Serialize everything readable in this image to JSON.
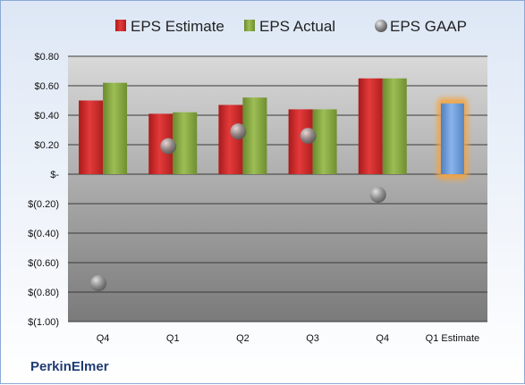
{
  "company": "PerkinElmer",
  "chart_data": {
    "type": "bar",
    "categories": [
      "Q4",
      "Q1",
      "Q2",
      "Q3",
      "Q4",
      "Q1 Estimate"
    ],
    "ylim": [
      -1.0,
      0.8
    ],
    "yticks": [
      0.8,
      0.6,
      0.4,
      0.2,
      0,
      -0.2,
      -0.4,
      -0.6,
      -0.8,
      -1.0
    ],
    "ytick_labels": [
      "$0.80",
      "$0.60",
      "$0.40",
      "$0.20",
      "$-",
      "$(0.20)",
      "$(0.40)",
      "$(0.60)",
      "$(0.80)",
      "$(1.00)"
    ],
    "grid": true,
    "legend_position": "top",
    "series": [
      {
        "name": "EPS Estimate",
        "color": "#d42a2a",
        "values": [
          0.5,
          0.41,
          0.47,
          0.44,
          0.65,
          null
        ]
      },
      {
        "name": "EPS Actual",
        "color": "#86a83f",
        "values": [
          0.62,
          0.42,
          0.52,
          0.44,
          0.65,
          null
        ]
      },
      {
        "name": "EPS GAAP",
        "color": "#9a9a9a",
        "values": [
          -0.74,
          0.19,
          0.29,
          0.26,
          -0.14,
          null
        ]
      }
    ],
    "estimate": {
      "category": "Q1 Estimate",
      "value": 0.48,
      "color": "#6f9fd8",
      "glow": "#f5a441"
    }
  }
}
